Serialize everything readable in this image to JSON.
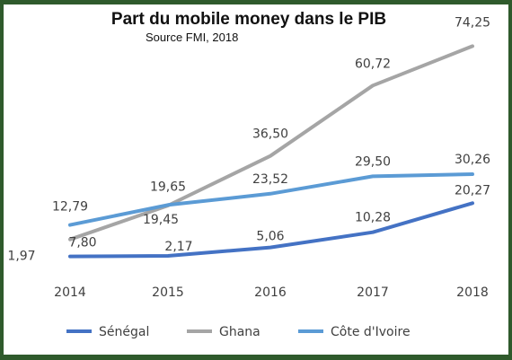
{
  "chart_data": {
    "type": "line",
    "title": "Part du mobile money dans le PIB",
    "subtitle": "Source FMI, 2018",
    "x": [
      "2014",
      "2015",
      "2016",
      "2017",
      "2018"
    ],
    "ylim": [
      0,
      80
    ],
    "grid": false,
    "legend_position": "bottom",
    "series": [
      {
        "name": "Sénégal",
        "color": "#4472c4",
        "values": [
          1.97,
          2.17,
          5.06,
          10.28,
          20.27
        ],
        "labels": [
          "1,97",
          "2,17",
          "5,06",
          "10,28",
          "20,27"
        ]
      },
      {
        "name": "Ghana",
        "color": "#a5a5a5",
        "values": [
          7.8,
          19.45,
          36.5,
          60.72,
          74.25
        ],
        "labels": [
          "7,80",
          "19,45",
          "36,50",
          "60,72",
          "74,25"
        ]
      },
      {
        "name": "Côte d'Ivoire",
        "color": "#5b9bd5",
        "values": [
          12.79,
          19.65,
          23.52,
          29.5,
          30.26
        ],
        "labels": [
          "12,79",
          "19,65",
          "23,52",
          "29,50",
          "30,26"
        ]
      }
    ]
  }
}
